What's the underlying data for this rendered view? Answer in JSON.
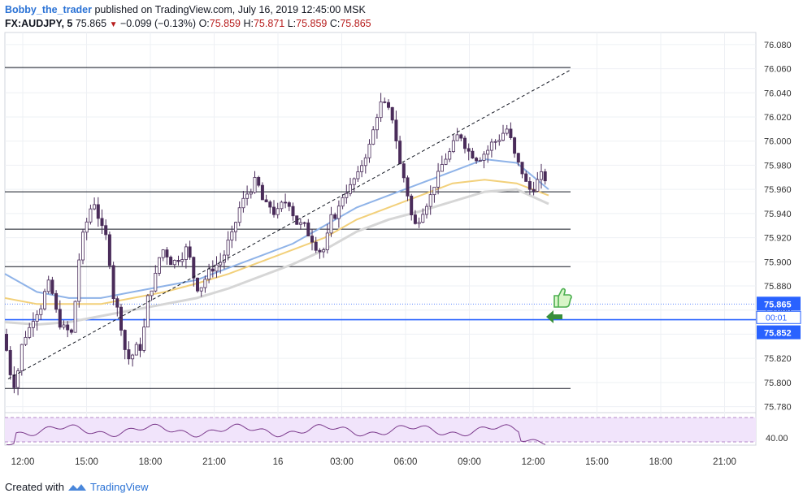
{
  "header": {
    "author": "Bobby_the_trader",
    "published_text": "published on TradingView.com, July 16, 2019 12:45:00 MSK",
    "symbol": "FX:AUDJPY, 5",
    "last_price": "75.865",
    "change": "−0.099 (−0.13%)",
    "o_label": "O:",
    "o_value": "75.859",
    "h_label": "H:",
    "h_value": "75.871",
    "l_label": "L:",
    "l_value": "75.859",
    "c_label": "C:",
    "c_value": "75.865"
  },
  "footer": {
    "created_with": "Created with",
    "brand": "TradingView"
  },
  "colors": {
    "candle": "#4a2c5a",
    "grid": "#eef0f4",
    "ma_blue": "#8fb3e8",
    "ma_yellow": "#f2d07a",
    "ma_gray": "#d6d6d6",
    "support": "#2962ff",
    "rsi_fill": "#f1e4fb",
    "rsi_line": "#7b3a8c",
    "thumb": "#4caf50",
    "arrow": "#388e3c"
  },
  "chart_data": {
    "type": "candlestick",
    "symbol": "FX:AUDJPY",
    "timeframe": "5",
    "price_axis": {
      "ticks": [
        "76.080",
        "76.060",
        "76.040",
        "76.020",
        "76.000",
        "75.980",
        "75.960",
        "75.940",
        "75.920",
        "75.900",
        "75.880",
        "75.860",
        "75.840",
        "75.820",
        "75.800",
        "75.780"
      ],
      "range": [
        75.775,
        76.09
      ]
    },
    "time_axis": {
      "labels": [
        "12:00",
        "15:00",
        "18:00",
        "21:00",
        "16",
        "03:00",
        "06:00",
        "09:00",
        "12:00",
        "15:00",
        "18:00",
        "21:00"
      ]
    },
    "price_labels": {
      "last": "75.865",
      "countdown": "00:01",
      "support": "75.852"
    },
    "horizontal_levels": [
      76.061,
      75.958,
      75.927,
      75.896,
      75.852,
      75.795
    ],
    "trend_line": {
      "from": [
        "12:00",
        75.803
      ],
      "to": [
        "13:50",
        76.059
      ]
    },
    "ohlc_points": [
      [
        "12:00",
        75.84
      ],
      [
        "12:30",
        75.8
      ],
      [
        "13:00",
        75.84
      ],
      [
        "13:30",
        75.86
      ],
      [
        "14:00",
        75.88
      ],
      [
        "14:30",
        75.85
      ],
      [
        "15:00",
        75.84
      ],
      [
        "15:30",
        75.92
      ],
      [
        "15:45",
        75.95
      ],
      [
        "16:15",
        75.92
      ],
      [
        "16:45",
        75.86
      ],
      [
        "17:15",
        75.82
      ],
      [
        "17:45",
        75.83
      ],
      [
        "18:15",
        75.88
      ],
      [
        "18:45",
        75.91
      ],
      [
        "19:15",
        75.9
      ],
      [
        "19:45",
        75.91
      ],
      [
        "20:15",
        75.88
      ],
      [
        "20:45",
        75.89
      ],
      [
        "21:15",
        75.9
      ],
      [
        "21:45",
        75.92
      ],
      [
        "22:15",
        75.95
      ],
      [
        "22:45",
        75.965
      ],
      [
        "23:15",
        75.945
      ],
      [
        "23:45",
        75.94
      ],
      [
        "00:15",
        75.95
      ],
      [
        "00:45",
        75.93
      ],
      [
        "01:15",
        75.92
      ],
      [
        "01:45",
        75.91
      ],
      [
        "02:15",
        75.94
      ],
      [
        "02:45",
        75.96
      ],
      [
        "03:15",
        75.97
      ],
      [
        "03:45",
        75.995
      ],
      [
        "04:00",
        76.03
      ],
      [
        "04:30",
        76.02
      ],
      [
        "05:00",
        75.97
      ],
      [
        "05:30",
        75.93
      ],
      [
        "06:00",
        75.95
      ],
      [
        "06:30",
        75.97
      ],
      [
        "07:00",
        75.99
      ],
      [
        "07:30",
        76.005
      ],
      [
        "08:00",
        75.99
      ],
      [
        "08:30",
        75.99
      ],
      [
        "09:00",
        76.0
      ],
      [
        "09:30",
        76.01
      ],
      [
        "10:00",
        75.98
      ],
      [
        "10:30",
        75.96
      ],
      [
        "11:00",
        75.97
      ],
      [
        "11:30",
        75.96
      ],
      [
        "12:00",
        75.945
      ],
      [
        "12:15",
        75.87
      ],
      [
        "12:45",
        75.865
      ]
    ],
    "moving_averages": [
      {
        "color": "blue",
        "values": [
          75.89,
          75.875,
          75.87,
          75.87,
          75.875,
          75.88,
          75.885,
          75.895,
          75.905,
          75.915,
          75.93,
          75.945,
          75.955,
          75.965,
          75.975,
          75.985,
          75.982,
          75.96
        ]
      },
      {
        "color": "yellow",
        "values": [
          75.87,
          75.865,
          75.865,
          75.865,
          75.87,
          75.875,
          75.882,
          75.89,
          75.9,
          75.91,
          75.92,
          75.935,
          75.945,
          75.955,
          75.965,
          75.968,
          75.965,
          75.955
        ]
      },
      {
        "color": "gray",
        "values": [
          75.85,
          75.848,
          75.85,
          75.855,
          75.86,
          75.865,
          75.87,
          75.878,
          75.888,
          75.898,
          75.91,
          75.925,
          75.935,
          75.942,
          75.95,
          75.958,
          75.96,
          75.948
        ]
      }
    ],
    "rsi": {
      "label": "40.00"
    }
  }
}
